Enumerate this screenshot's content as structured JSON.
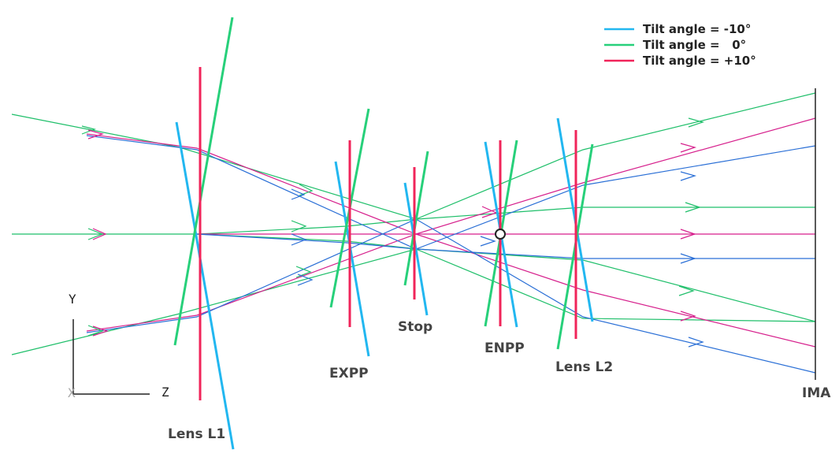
{
  "legend": {
    "items": [
      {
        "label": "Tilt angle = -10°",
        "color": "#22b7f0"
      },
      {
        "label": "Tilt angle =   0°",
        "color": "#27d07a"
      },
      {
        "label": "Tilt angle = +10°",
        "color": "#f0245a"
      }
    ]
  },
  "labels": {
    "lens_l1": "Lens L1",
    "expp": "EXPP",
    "stop": "Stop",
    "enpp": "ENPP",
    "lens_l2": "Lens L2",
    "ima": "IMA"
  },
  "axes": {
    "y": "Y",
    "z": "Z",
    "x": "X"
  },
  "colors": {
    "blue": "#22b7f0",
    "green": "#27d07a",
    "red": "#f0245a",
    "ray_green": "#1fbf6a",
    "ray_magenta": "#d61f8c",
    "ray_blue": "#2a6fd6",
    "image_plane": "#222222"
  }
}
